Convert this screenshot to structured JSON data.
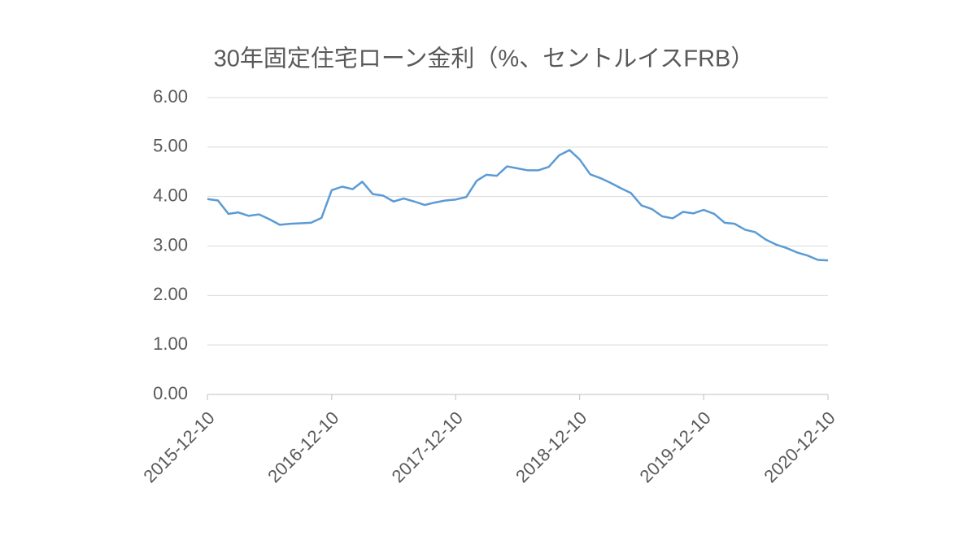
{
  "chart_data": {
    "type": "line",
    "title": "30年固定住宅ローン金利（%、セントルイスFRB）",
    "x": [
      "2015-12-10",
      "2016-01-10",
      "2016-02-10",
      "2016-03-10",
      "2016-04-10",
      "2016-05-10",
      "2016-06-10",
      "2016-07-10",
      "2016-08-10",
      "2016-09-10",
      "2016-10-10",
      "2016-11-10",
      "2016-12-10",
      "2017-01-10",
      "2017-02-10",
      "2017-03-10",
      "2017-04-10",
      "2017-05-10",
      "2017-06-10",
      "2017-07-10",
      "2017-08-10",
      "2017-09-10",
      "2017-10-10",
      "2017-11-10",
      "2017-12-10",
      "2018-01-10",
      "2018-02-10",
      "2018-03-10",
      "2018-04-10",
      "2018-05-10",
      "2018-06-10",
      "2018-07-10",
      "2018-08-10",
      "2018-09-10",
      "2018-10-10",
      "2018-11-10",
      "2018-12-10",
      "2019-01-10",
      "2019-02-10",
      "2019-03-10",
      "2019-04-10",
      "2019-05-10",
      "2019-06-10",
      "2019-07-10",
      "2019-08-10",
      "2019-09-10",
      "2019-10-10",
      "2019-11-10",
      "2019-12-10",
      "2020-01-10",
      "2020-02-10",
      "2020-03-10",
      "2020-04-10",
      "2020-05-10",
      "2020-06-10",
      "2020-07-10",
      "2020-08-10",
      "2020-09-10",
      "2020-10-10",
      "2020-11-10",
      "2020-12-10"
    ],
    "series": [
      {
        "color": "#5b9bd5",
        "values": [
          3.95,
          3.92,
          3.65,
          3.68,
          3.61,
          3.64,
          3.54,
          3.43,
          3.45,
          3.46,
          3.47,
          3.57,
          4.13,
          4.2,
          4.15,
          4.3,
          4.05,
          4.02,
          3.9,
          3.96,
          3.9,
          3.83,
          3.88,
          3.92,
          3.94,
          3.99,
          4.32,
          4.44,
          4.42,
          4.61,
          4.57,
          4.53,
          4.53,
          4.6,
          4.83,
          4.94,
          4.75,
          4.45,
          4.37,
          4.28,
          4.17,
          4.07,
          3.82,
          3.75,
          3.6,
          3.56,
          3.69,
          3.66,
          3.73,
          3.65,
          3.47,
          3.45,
          3.33,
          3.28,
          3.13,
          3.03,
          2.96,
          2.87,
          2.81,
          2.72,
          2.71
        ]
      }
    ],
    "xlim": [
      "2015-12-10",
      "2020-12-10"
    ],
    "xticks": [
      "2015-12-10",
      "2016-12-10",
      "2017-12-10",
      "2018-12-10",
      "2019-12-10",
      "2020-12-10"
    ],
    "ylim": [
      0,
      6
    ],
    "yticks": [
      {
        "value": 0,
        "label": "0.00"
      },
      {
        "value": 1,
        "label": "1.00"
      },
      {
        "value": 2,
        "label": "2.00"
      },
      {
        "value": 3,
        "label": "3.00"
      },
      {
        "value": 4,
        "label": "4.00"
      },
      {
        "value": 5,
        "label": "5.00"
      },
      {
        "value": 6,
        "label": "6.00"
      }
    ],
    "grid": true
  }
}
